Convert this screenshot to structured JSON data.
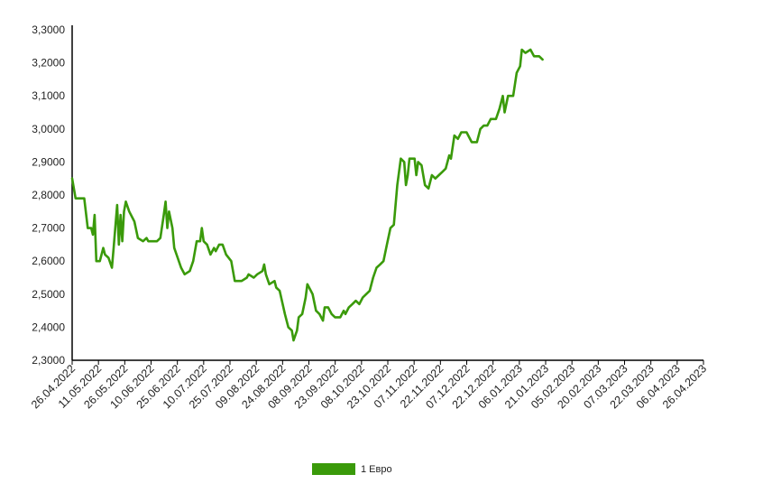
{
  "chart_data": {
    "type": "line",
    "title": "",
    "xlabel": "",
    "ylabel": "",
    "ylim": [
      2.3,
      3.3
    ],
    "y_ticks": [
      "2,3000",
      "2,4000",
      "2,5000",
      "2,6000",
      "2,7000",
      "2,8000",
      "2,9000",
      "3,0000",
      "3,1000",
      "3,2000",
      "3,3000"
    ],
    "x_ticks": [
      "26.04.2022",
      "11.05.2022",
      "26.05.2022",
      "10.06.2022",
      "25.06.2022",
      "10.07.2022",
      "25.07.2022",
      "09.08.2022",
      "24.08.2022",
      "08.09.2022",
      "23.09.2022",
      "08.10.2022",
      "23.10.2022",
      "07.11.2022",
      "22.11.2022",
      "07.12.2022",
      "22.12.2022",
      "06.01.2023",
      "21.01.2023",
      "05.02.2023",
      "20.02.2023",
      "07.03.2023",
      "22.03.2023",
      "06.04.2023",
      "26.04.2023"
    ],
    "grid": false,
    "legend_position": "bottom",
    "series": [
      {
        "name": "1 Евро",
        "color": "#3a9a0a",
        "points": [
          [
            "26.04.2022",
            2.85
          ],
          [
            "28.04.2022",
            2.79
          ],
          [
            "01.05.2022",
            2.79
          ],
          [
            "03.05.2022",
            2.79
          ],
          [
            "05.05.2022",
            2.7
          ],
          [
            "07.05.2022",
            2.7
          ],
          [
            "08.05.2022",
            2.68
          ],
          [
            "09.05.2022",
            2.74
          ],
          [
            "10.05.2022",
            2.6
          ],
          [
            "12.05.2022",
            2.6
          ],
          [
            "14.05.2022",
            2.64
          ],
          [
            "15.05.2022",
            2.62
          ],
          [
            "17.05.2022",
            2.61
          ],
          [
            "19.05.2022",
            2.58
          ],
          [
            "20.05.2022",
            2.64
          ],
          [
            "22.05.2022",
            2.77
          ],
          [
            "23.05.2022",
            2.65
          ],
          [
            "24.05.2022",
            2.74
          ],
          [
            "25.05.2022",
            2.66
          ],
          [
            "26.05.2022",
            2.75
          ],
          [
            "27.05.2022",
            2.78
          ],
          [
            "29.05.2022",
            2.75
          ],
          [
            "31.05.2022",
            2.73
          ],
          [
            "01.06.2022",
            2.72
          ],
          [
            "03.06.2022",
            2.67
          ],
          [
            "06.06.2022",
            2.66
          ],
          [
            "08.06.2022",
            2.67
          ],
          [
            "09.06.2022",
            2.66
          ],
          [
            "12.06.2022",
            2.66
          ],
          [
            "14.06.2022",
            2.66
          ],
          [
            "16.06.2022",
            2.67
          ],
          [
            "18.06.2022",
            2.74
          ],
          [
            "19.06.2022",
            2.78
          ],
          [
            "20.06.2022",
            2.7
          ],
          [
            "21.06.2022",
            2.75
          ],
          [
            "23.06.2022",
            2.7
          ],
          [
            "24.06.2022",
            2.64
          ],
          [
            "26.06.2022",
            2.61
          ],
          [
            "28.06.2022",
            2.58
          ],
          [
            "30.06.2022",
            2.56
          ],
          [
            "03.07.2022",
            2.57
          ],
          [
            "05.07.2022",
            2.6
          ],
          [
            "07.07.2022",
            2.66
          ],
          [
            "09.07.2022",
            2.66
          ],
          [
            "10.07.2022",
            2.7
          ],
          [
            "11.07.2022",
            2.66
          ],
          [
            "13.07.2022",
            2.65
          ],
          [
            "15.07.2022",
            2.62
          ],
          [
            "17.07.2022",
            2.64
          ],
          [
            "18.07.2022",
            2.63
          ],
          [
            "20.07.2022",
            2.65
          ],
          [
            "22.07.2022",
            2.65
          ],
          [
            "24.07.2022",
            2.62
          ],
          [
            "27.07.2022",
            2.6
          ],
          [
            "29.07.2022",
            2.54
          ],
          [
            "02.08.2022",
            2.54
          ],
          [
            "05.08.2022",
            2.55
          ],
          [
            "06.08.2022",
            2.56
          ],
          [
            "09.08.2022",
            2.55
          ],
          [
            "11.08.2022",
            2.56
          ],
          [
            "14.08.2022",
            2.57
          ],
          [
            "15.08.2022",
            2.59
          ],
          [
            "16.08.2022",
            2.56
          ],
          [
            "18.08.2022",
            2.53
          ],
          [
            "21.08.2022",
            2.54
          ],
          [
            "22.08.2022",
            2.52
          ],
          [
            "24.08.2022",
            2.51
          ],
          [
            "27.08.2022",
            2.44
          ],
          [
            "29.08.2022",
            2.4
          ],
          [
            "31.08.2022",
            2.39
          ],
          [
            "01.09.2022",
            2.36
          ],
          [
            "03.09.2022",
            2.39
          ],
          [
            "04.09.2022",
            2.43
          ],
          [
            "06.09.2022",
            2.44
          ],
          [
            "08.09.2022",
            2.49
          ],
          [
            "09.09.2022",
            2.53
          ],
          [
            "11.09.2022",
            2.51
          ],
          [
            "12.09.2022",
            2.5
          ],
          [
            "14.09.2022",
            2.45
          ],
          [
            "16.09.2022",
            2.44
          ],
          [
            "18.09.2022",
            2.42
          ],
          [
            "19.09.2022",
            2.46
          ],
          [
            "21.09.2022",
            2.46
          ],
          [
            "23.09.2022",
            2.44
          ],
          [
            "25.09.2022",
            2.43
          ],
          [
            "28.09.2022",
            2.43
          ],
          [
            "30.09.2022",
            2.45
          ],
          [
            "01.10.2022",
            2.44
          ],
          [
            "03.10.2022",
            2.46
          ],
          [
            "05.10.2022",
            2.47
          ],
          [
            "07.10.2022",
            2.48
          ],
          [
            "09.10.2022",
            2.47
          ],
          [
            "11.10.2022",
            2.49
          ],
          [
            "13.10.2022",
            2.5
          ],
          [
            "15.10.2022",
            2.51
          ],
          [
            "17.10.2022",
            2.55
          ],
          [
            "19.10.2022",
            2.58
          ],
          [
            "21.10.2022",
            2.59
          ],
          [
            "23.10.2022",
            2.6
          ],
          [
            "25.10.2022",
            2.65
          ],
          [
            "27.10.2022",
            2.7
          ],
          [
            "29.10.2022",
            2.71
          ],
          [
            "31.10.2022",
            2.83
          ],
          [
            "02.11.2022",
            2.91
          ],
          [
            "04.11.2022",
            2.9
          ],
          [
            "05.11.2022",
            2.83
          ],
          [
            "06.11.2022",
            2.86
          ],
          [
            "07.11.2022",
            2.91
          ],
          [
            "10.11.2022",
            2.91
          ],
          [
            "11.11.2022",
            2.86
          ],
          [
            "12.11.2022",
            2.9
          ],
          [
            "14.11.2022",
            2.89
          ],
          [
            "16.11.2022",
            2.83
          ],
          [
            "18.11.2022",
            2.82
          ],
          [
            "20.11.2022",
            2.86
          ],
          [
            "22.11.2022",
            2.85
          ],
          [
            "24.11.2022",
            2.86
          ],
          [
            "26.11.2022",
            2.87
          ],
          [
            "28.11.2022",
            2.88
          ],
          [
            "30.11.2022",
            2.92
          ],
          [
            "01.12.2022",
            2.91
          ],
          [
            "03.12.2022",
            2.98
          ],
          [
            "05.12.2022",
            2.97
          ],
          [
            "07.12.2022",
            2.99
          ],
          [
            "10.12.2022",
            2.99
          ],
          [
            "13.12.2022",
            2.96
          ],
          [
            "16.12.2022",
            2.96
          ],
          [
            "18.12.2022",
            3.0
          ],
          [
            "20.12.2022",
            3.01
          ],
          [
            "22.12.2022",
            3.01
          ],
          [
            "24.12.2022",
            3.03
          ],
          [
            "27.12.2022",
            3.03
          ],
          [
            "29.12.2022",
            3.06
          ],
          [
            "31.12.2022",
            3.1
          ],
          [
            "01.01.2023",
            3.05
          ],
          [
            "03.01.2023",
            3.1
          ],
          [
            "06.01.2023",
            3.1
          ],
          [
            "08.01.2023",
            3.17
          ],
          [
            "10.01.2023",
            3.19
          ],
          [
            "11.01.2023",
            3.24
          ],
          [
            "13.01.2023",
            3.23
          ],
          [
            "16.01.2023",
            3.24
          ],
          [
            "18.01.2023",
            3.22
          ],
          [
            "21.01.2023",
            3.22
          ],
          [
            "23.01.2023",
            3.21
          ]
        ]
      }
    ]
  }
}
